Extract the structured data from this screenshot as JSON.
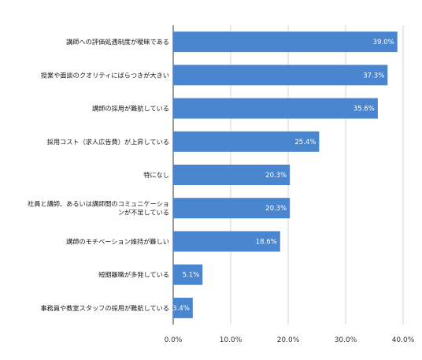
{
  "chart_data": {
    "type": "bar",
    "orientation": "horizontal",
    "categories": [
      [
        "講師への評価処遇制度が曖昧である"
      ],
      [
        "授業や面談のクオリティにばらつきが大きい"
      ],
      [
        "講師の採用が難航している"
      ],
      [
        "採用コスト（求人広告費）が上昇している"
      ],
      [
        "特になし"
      ],
      [
        "社員と講師、あるいは講師間のコミュニケーショ",
        "ンが不足している"
      ],
      [
        "講師のモチベーション維持が難しい"
      ],
      [
        "短期離職が多発している"
      ],
      [
        "事務員や教室スタッフの採用が難航している"
      ]
    ],
    "values": [
      39.0,
      37.3,
      35.6,
      25.4,
      20.3,
      20.3,
      18.6,
      5.1,
      3.4
    ],
    "value_labels": [
      "39.0%",
      "37.3%",
      "35.6%",
      "25.4%",
      "20.3%",
      "20.3%",
      "18.6%",
      "5.1%",
      "3.4%"
    ],
    "xlim": [
      0,
      40
    ],
    "xticks": [
      0,
      10,
      20,
      30,
      40
    ],
    "xtick_labels": [
      "0.0%",
      "10.0%",
      "20.0%",
      "30.0%",
      "40.0%"
    ],
    "grid": true,
    "bar_color": "#4a86cf",
    "title": "",
    "xlabel": "",
    "ylabel": ""
  }
}
